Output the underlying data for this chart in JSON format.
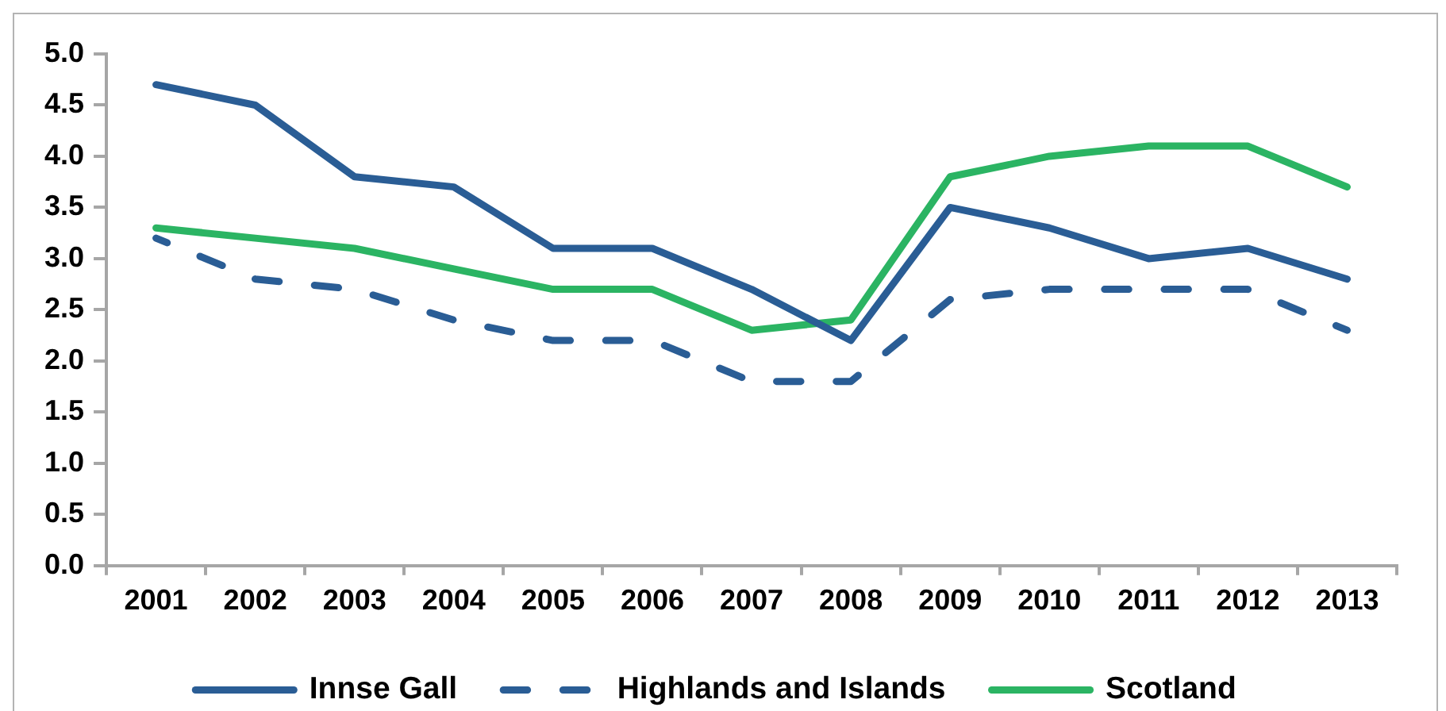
{
  "chart_data": {
    "type": "line",
    "categories": [
      "2001",
      "2002",
      "2003",
      "2004",
      "2005",
      "2006",
      "2007",
      "2008",
      "2009",
      "2010",
      "2011",
      "2012",
      "2013"
    ],
    "series": [
      {
        "name": "Innse Gall",
        "color": "#2a5d95",
        "values": [
          4.7,
          4.5,
          3.8,
          3.7,
          3.1,
          3.1,
          2.7,
          2.2,
          3.5,
          3.3,
          3.0,
          3.1,
          2.8
        ]
      },
      {
        "name": "Highlands and Islands",
        "color": "#2a5d95",
        "line_style": "dashed",
        "values": [
          3.2,
          2.8,
          2.7,
          2.4,
          2.2,
          2.2,
          1.8,
          1.8,
          2.6,
          2.7,
          2.7,
          2.7,
          2.3
        ]
      },
      {
        "name": "Scotland",
        "color": "#2bb463",
        "values": [
          3.3,
          3.2,
          3.1,
          2.9,
          2.7,
          2.7,
          2.3,
          2.4,
          3.8,
          4.0,
          4.1,
          4.1,
          3.7
        ]
      }
    ],
    "ylim": [
      0,
      5
    ],
    "yticks": [
      {
        "value": 0,
        "label": "0.0"
      },
      {
        "value": 0.5,
        "label": "0.5"
      },
      {
        "value": 1,
        "label": "1.0"
      },
      {
        "value": 1.5,
        "label": "1.5"
      },
      {
        "value": 2,
        "label": "2.0"
      },
      {
        "value": 2.5,
        "label": "2.5"
      },
      {
        "value": 3,
        "label": "3.0"
      },
      {
        "value": 3.5,
        "label": "3.5"
      },
      {
        "value": 4,
        "label": "4.0"
      },
      {
        "value": 4.5,
        "label": "4.5"
      },
      {
        "value": 5,
        "label": "5.0"
      }
    ],
    "grid": false,
    "legend": "bottom",
    "marker": "none"
  }
}
